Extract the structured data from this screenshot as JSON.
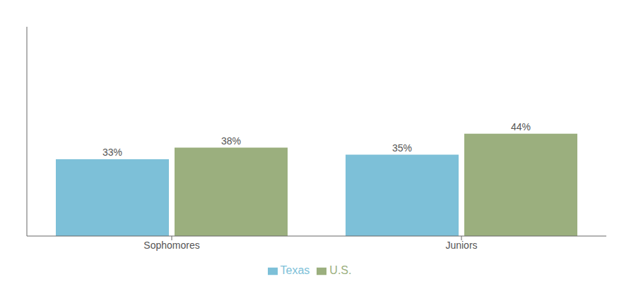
{
  "chart_data": {
    "type": "bar",
    "categories": [
      "Sophomores",
      "Juniors"
    ],
    "series": [
      {
        "name": "Texas",
        "color": "#7DC0D8",
        "values": [
          33,
          35
        ],
        "value_labels": [
          "33%",
          "35%"
        ]
      },
      {
        "name": "U.S.",
        "color": "#9BAF7E",
        "values": [
          38,
          44
        ],
        "value_labels": [
          "38%",
          "44%"
        ]
      }
    ],
    "ylim": [
      0,
      90
    ],
    "data_labels": true,
    "tick_labels": "x",
    "legend": "bottom",
    "grid": false
  }
}
